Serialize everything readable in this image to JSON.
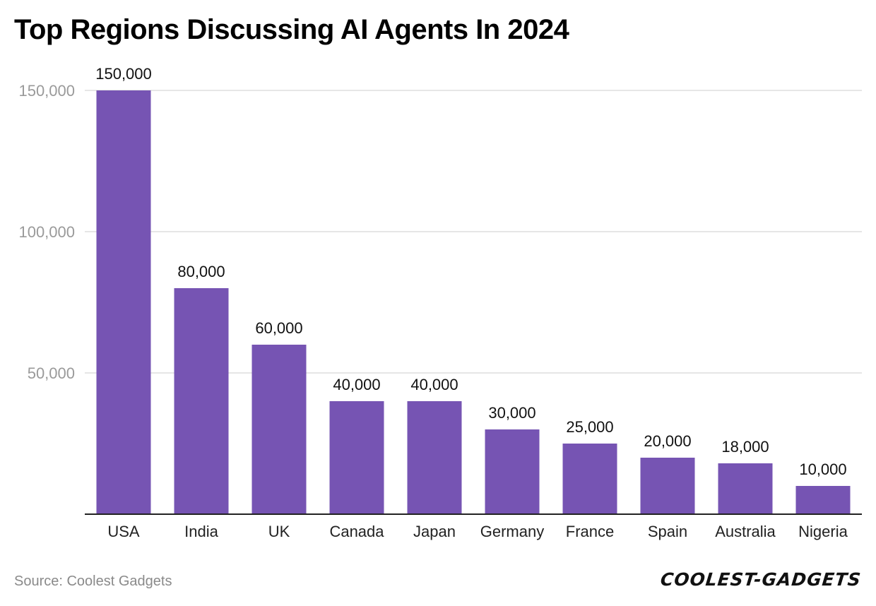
{
  "chart_data": {
    "type": "bar",
    "title": "Top Regions Discussing AI Agents In 2024",
    "xlabel": "",
    "ylabel": "",
    "categories": [
      "USA",
      "India",
      "UK",
      "Canada",
      "Japan",
      "Germany",
      "France",
      "Spain",
      "Australia",
      "Nigeria"
    ],
    "values": [
      150000,
      80000,
      60000,
      40000,
      40000,
      30000,
      25000,
      20000,
      18000,
      10000
    ],
    "value_labels": [
      "150,000",
      "80,000",
      "60,000",
      "40,000",
      "40,000",
      "30,000",
      "25,000",
      "20,000",
      "18,000",
      "10,000"
    ],
    "ylim": [
      0,
      150000
    ],
    "yticks": [
      50000,
      100000,
      150000
    ],
    "ytick_labels": [
      "50,000",
      "100,000",
      "150,000"
    ],
    "grid": true,
    "bar_color": "#7654b3",
    "grid_color": "#dddddd",
    "axis_color": "#222222"
  },
  "footer": {
    "source": "Source: Coolest Gadgets",
    "logo_text": "COOLEST-GADGETS"
  }
}
